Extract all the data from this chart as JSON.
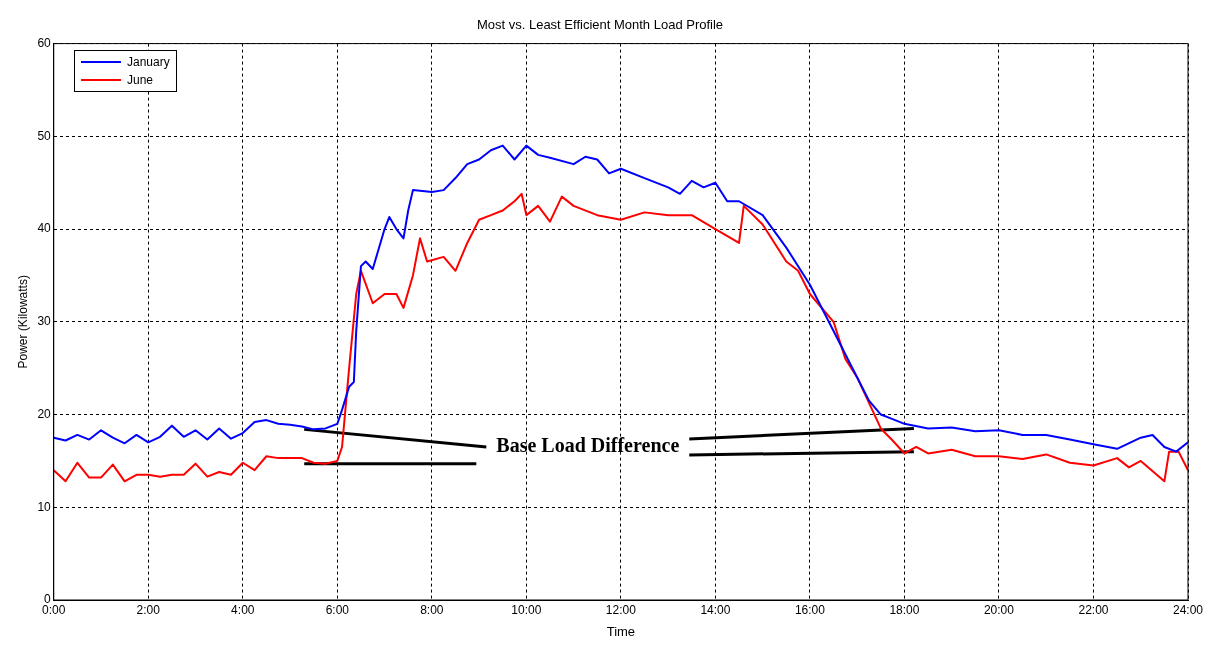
{
  "chart_data": {
    "type": "line",
    "title": "Most vs. Least Efficient Month Load Profile",
    "xlabel": "Time",
    "ylabel": "Power (Kilowatts)",
    "xlim": [
      0,
      24
    ],
    "xticks": [
      {
        "value": 0,
        "label": "0:00"
      },
      {
        "value": 2,
        "label": "2:00"
      },
      {
        "value": 4,
        "label": "4:00"
      },
      {
        "value": 6,
        "label": "6:00"
      },
      {
        "value": 8,
        "label": "8:00"
      },
      {
        "value": 10,
        "label": "10:00"
      },
      {
        "value": 12,
        "label": "12:00"
      },
      {
        "value": 14,
        "label": "14:00"
      },
      {
        "value": 16,
        "label": "16:00"
      },
      {
        "value": 18,
        "label": "18:00"
      },
      {
        "value": 20,
        "label": "20:00"
      },
      {
        "value": 22,
        "label": "22:00"
      },
      {
        "value": 24,
        "label": "24:00"
      }
    ],
    "ylim": [
      0,
      60
    ],
    "yticks": [
      0,
      10,
      20,
      30,
      40,
      50,
      60
    ],
    "grid": true,
    "legend": "top left",
    "marker": "none",
    "line_style": "solid",
    "annotations": [
      {
        "text": "Base Load Difference",
        "x": 5.3,
        "y": 18.4
      }
    ],
    "series": [
      {
        "name": "January",
        "color": "#0000ff",
        "x": [
          0,
          0.25,
          0.5,
          0.75,
          1,
          1.25,
          1.5,
          1.75,
          2,
          2.25,
          2.5,
          2.75,
          3,
          3.25,
          3.5,
          3.75,
          4,
          4.25,
          4.5,
          4.75,
          5,
          5.25,
          5.5,
          5.75,
          6,
          6.1,
          6.25,
          6.35,
          6.4,
          6.5,
          6.6,
          6.75,
          7,
          7.1,
          7.25,
          7.4,
          7.5,
          7.6,
          8,
          8.25,
          8.5,
          8.75,
          9,
          9.25,
          9.5,
          9.75,
          10,
          10.25,
          10.5,
          11,
          11.25,
          11.5,
          11.75,
          12,
          12.5,
          13,
          13.25,
          13.5,
          13.75,
          14,
          14.25,
          14.5,
          15,
          15.5,
          16,
          16.5,
          17,
          17.25,
          17.5,
          17.75,
          18,
          18.5,
          19,
          19.5,
          20,
          20.5,
          21,
          21.5,
          22,
          22.5,
          23,
          23.25,
          23.5,
          23.75,
          24
        ],
        "values": [
          17.5,
          17.2,
          17.8,
          17.3,
          18.3,
          17.5,
          16.9,
          17.8,
          17.0,
          17.6,
          18.8,
          17.6,
          18.3,
          17.3,
          18.5,
          17.4,
          18.0,
          19.2,
          19.4,
          19.0,
          18.9,
          18.7,
          18.4,
          18.5,
          19.0,
          20.5,
          23,
          23.5,
          29,
          36,
          36.5,
          35.7,
          40,
          41.3,
          40,
          39,
          42,
          44.2,
          44,
          44.2,
          45.5,
          47,
          47.5,
          48.5,
          49,
          47.5,
          49,
          48,
          47.7,
          47,
          47.8,
          47.5,
          46,
          46.5,
          45.5,
          44.5,
          43.8,
          45.2,
          44.5,
          45,
          43,
          43,
          41.5,
          38,
          34,
          29,
          24,
          21.5,
          20,
          19.5,
          19,
          18.5,
          18.6,
          18.2,
          18.3,
          17.8,
          17.8,
          17.3,
          16.8,
          16.3,
          17.5,
          17.8,
          16.5,
          16.0,
          17
        ]
      },
      {
        "name": "June",
        "color": "#ff0000",
        "x": [
          0,
          0.25,
          0.5,
          0.75,
          1,
          1.25,
          1.5,
          1.75,
          2,
          2.25,
          2.5,
          2.75,
          3,
          3.25,
          3.5,
          3.75,
          4,
          4.25,
          4.5,
          4.75,
          5,
          5.25,
          5.5,
          5.75,
          6,
          6.1,
          6.25,
          6.4,
          6.5,
          6.75,
          7,
          7.25,
          7.4,
          7.6,
          7.75,
          7.9,
          8.25,
          8.5,
          8.75,
          9,
          9.25,
          9.5,
          9.75,
          9.9,
          10,
          10.25,
          10.5,
          10.75,
          11,
          11.5,
          12,
          12.5,
          13,
          13.5,
          14,
          14.5,
          14.6,
          15,
          15.5,
          15.75,
          16,
          16.5,
          16.75,
          17,
          17.5,
          17.75,
          18,
          18.25,
          18.5,
          19,
          19.5,
          20,
          20.5,
          21,
          21.5,
          22,
          22.5,
          22.75,
          23,
          23.5,
          23.6,
          23.8,
          24
        ],
        "values": [
          14,
          12.8,
          14.8,
          13.2,
          13.2,
          14.6,
          12.8,
          13.5,
          13.5,
          13.3,
          13.5,
          13.5,
          14.7,
          13.3,
          13.8,
          13.5,
          14.8,
          14.0,
          15.5,
          15.3,
          15.3,
          15.3,
          14.8,
          14.7,
          15,
          16.5,
          25,
          33,
          35.5,
          32,
          33,
          33,
          31.5,
          35,
          39,
          36.5,
          37,
          35.5,
          38.5,
          41,
          41.5,
          42,
          43,
          43.8,
          41.5,
          42.5,
          40.8,
          43.5,
          42.5,
          41.5,
          41,
          41.8,
          41.5,
          41.5,
          40,
          38.5,
          42.5,
          40.5,
          36.5,
          35.5,
          33,
          30,
          26,
          24,
          18.5,
          17.2,
          15.8,
          16.5,
          15.8,
          16.2,
          15.5,
          15.5,
          15.2,
          15.7,
          14.8,
          14.5,
          15.3,
          14.3,
          15,
          12.8,
          16,
          16.0,
          14
        ]
      }
    ]
  }
}
